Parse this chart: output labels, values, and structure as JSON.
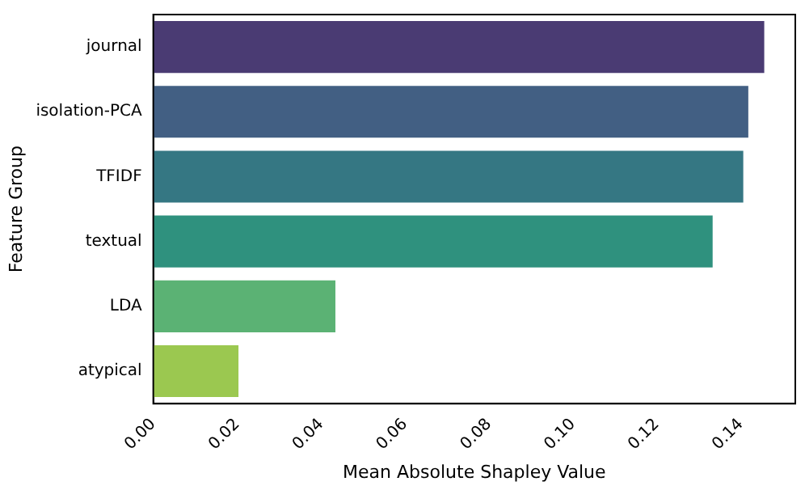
{
  "chart_data": {
    "type": "bar",
    "orientation": "horizontal",
    "xlabel": "Mean Absolute Shapley Value",
    "ylabel": "Feature Group",
    "categories": [
      "journal",
      "isolation-PCA",
      "TFIDF",
      "textual",
      "LDA",
      "atypical"
    ],
    "values": [
      0.1456,
      0.1418,
      0.1406,
      0.1333,
      0.0434,
      0.0203
    ],
    "colors": [
      "#4a3b73",
      "#425f83",
      "#357783",
      "#2f917e",
      "#5bb274",
      "#9bc850"
    ],
    "xlim": [
      0,
      0.153
    ],
    "xticks": [
      {
        "value": 0,
        "label": "0.00"
      },
      {
        "value": 0.02,
        "label": "0.02"
      },
      {
        "value": 0.04,
        "label": "0.04"
      },
      {
        "value": 0.06,
        "label": "0.06"
      },
      {
        "value": 0.08,
        "label": "0.08"
      },
      {
        "value": 0.1,
        "label": "0.10"
      },
      {
        "value": 0.12,
        "label": "0.12"
      },
      {
        "value": 0.14,
        "label": "0.14"
      }
    ],
    "grid": false,
    "legend": false
  }
}
